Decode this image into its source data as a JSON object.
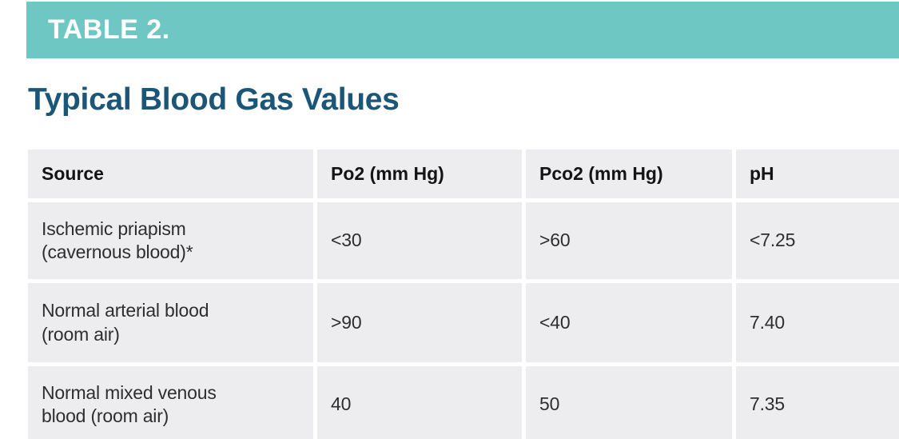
{
  "banner": {
    "label": "TABLE 2.",
    "background_color": "#6fc7c3",
    "text_color": "#ffffff"
  },
  "title": {
    "text": "Typical Blood Gas Values",
    "color": "#1b5679"
  },
  "table": {
    "row_background_color": "#ededef",
    "columns": {
      "source": "Source",
      "po2": "Po2 (mm Hg)",
      "pco2": "Pco2 (mm Hg)",
      "ph": "pH"
    },
    "rows": [
      {
        "source": "Ischemic priapism (cavernous blood)*",
        "source_lines": [
          "Ischemic priapism",
          "(cavernous blood)*"
        ],
        "po2": "<30",
        "pco2": ">60",
        "ph": "<7.25"
      },
      {
        "source": "Normal arterial blood (room air)",
        "source_lines": [
          "Normal arterial blood",
          "(room air)"
        ],
        "po2": ">90",
        "pco2": "<40",
        "ph": "7.40"
      },
      {
        "source": "Normal mixed venous blood (room air)",
        "source_lines": [
          "Normal mixed venous",
          "blood (room air)"
        ],
        "po2": "40",
        "pco2": "50",
        "ph": "7.35"
      }
    ]
  }
}
